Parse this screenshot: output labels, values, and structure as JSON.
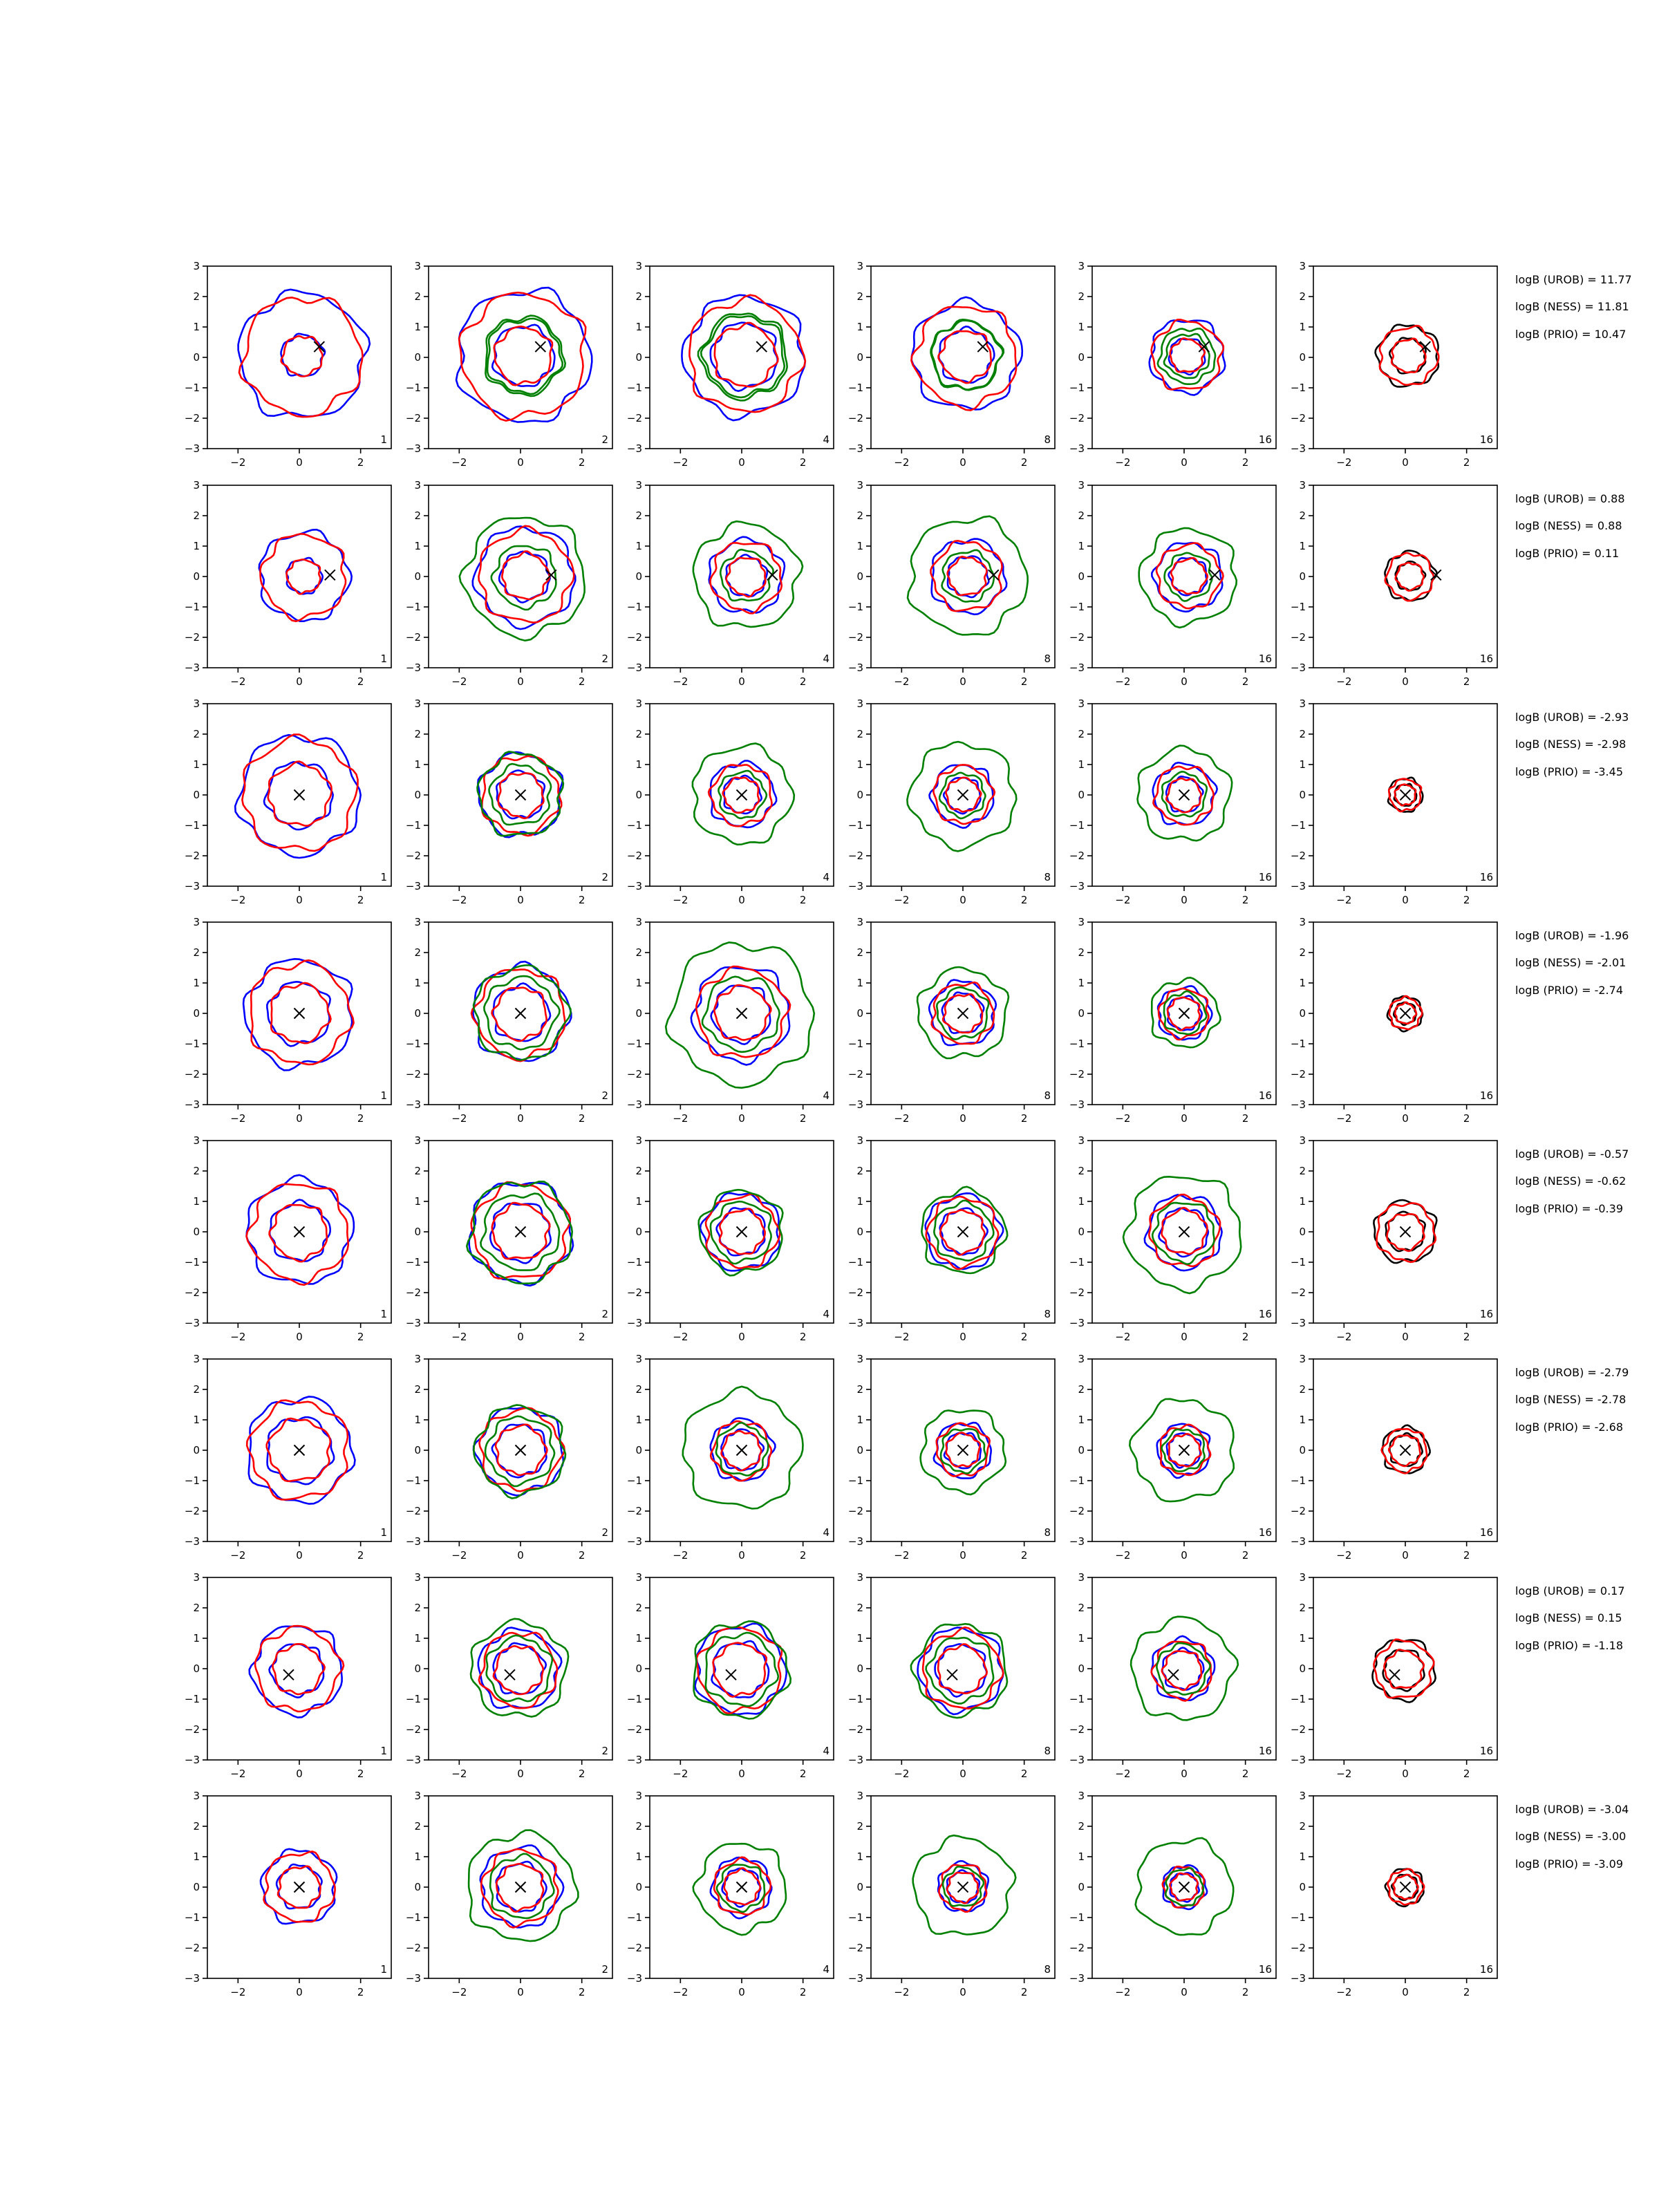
{
  "chart_data": {
    "type": "contour",
    "layout": {
      "rows": 8,
      "cols": 6
    },
    "axes": {
      "xlim": [
        -3,
        3
      ],
      "ylim": [
        -3,
        3
      ],
      "xticks": [
        -2,
        0,
        2
      ],
      "yticks": [
        -3,
        -2,
        -1,
        0,
        1,
        2,
        3
      ],
      "xtick_labels": [
        "−2",
        "0",
        "2"
      ],
      "ytick_labels": [
        "−3",
        "−2",
        "−1",
        "0",
        "1",
        "2",
        "3"
      ]
    },
    "colors": {
      "blue": "#0000ff",
      "red": "#ff0000",
      "green": "#008000",
      "black": "#000000"
    },
    "columns": [
      {
        "n": "1",
        "series_colors": [
          "blue",
          "red"
        ]
      },
      {
        "n": "2",
        "series_colors": [
          "blue",
          "red",
          "green"
        ]
      },
      {
        "n": "4",
        "series_colors": [
          "blue",
          "red",
          "green"
        ]
      },
      {
        "n": "8",
        "series_colors": [
          "blue",
          "red",
          "green"
        ]
      },
      {
        "n": "16",
        "series_colors": [
          "blue",
          "red",
          "green"
        ]
      },
      {
        "n": "16",
        "series_colors": [
          "black",
          "red"
        ]
      }
    ],
    "rows": [
      {
        "marker": [
          0.65,
          0.35
        ],
        "scale": 1.0,
        "radii": [
          [
            1.15,
            2.05
          ],
          [
            1.7,
            2.15
          ],
          [
            1.85,
            1.95
          ],
          [
            1.5,
            1.75
          ],
          [
            0.95,
            1.2
          ],
          [
            0.95,
            1.0
          ]
        ],
        "green_outer": [
          0,
          1.2,
          1.3,
          1.1,
          0.9,
          0
        ],
        "annotations": {
          "urob": "logB (UROB) = 11.77",
          "ness": "logB (NESS) = 11.81",
          "prio": "logB (PRIO) = 10.47"
        }
      },
      {
        "marker": [
          1.0,
          0.05
        ],
        "scale": 0.8,
        "radii": [
          [
            0.95,
            1.45
          ],
          [
            1.35,
            1.6
          ],
          [
            1.1,
            1.2
          ],
          [
            1.1,
            1.2
          ],
          [
            1.0,
            1.1
          ],
          [
            0.75,
            0.8
          ]
        ],
        "green_outer": [
          0,
          1.95,
          1.7,
          1.9,
          1.55,
          0
        ],
        "annotations": {
          "urob": "logB (UROB) = 0.88",
          "ness": "logB (NESS) = 0.88",
          "prio": "logB (PRIO) = 0.11"
        }
      },
      {
        "marker": [
          0,
          0
        ],
        "scale": 1.0,
        "radii": [
          [
            1.85,
            1.95
          ],
          [
            1.3,
            1.35
          ],
          [
            1.0,
            1.05
          ],
          [
            0.95,
            1.0
          ],
          [
            0.95,
            1.0
          ],
          [
            0.55,
            0.55
          ]
        ],
        "green_outer": [
          0,
          1.35,
          1.6,
          1.7,
          1.5,
          0
        ],
        "annotations": {
          "urob": "logB (UROB) = -2.93",
          "ness": "logB (NESS) = -2.98",
          "prio": "logB (PRIO) = -3.45"
        }
      },
      {
        "marker": [
          0,
          0
        ],
        "scale": 0.8,
        "radii": [
          [
            1.75,
            1.75
          ],
          [
            1.55,
            1.55
          ],
          [
            1.6,
            1.55
          ],
          [
            1.1,
            1.05
          ],
          [
            0.9,
            0.85
          ],
          [
            0.55,
            0.55
          ]
        ],
        "green_outer": [
          0,
          1.5,
          2.3,
          1.45,
          1.1,
          0
        ],
        "annotations": {
          "urob": "logB (UROB) = -1.96",
          "ness": "logB (NESS) = -2.01",
          "prio": "logB (PRIO) = -2.74"
        }
      },
      {
        "marker": [
          0,
          0
        ],
        "scale": 0.8,
        "radii": [
          [
            1.65,
            1.7
          ],
          [
            1.65,
            1.65
          ],
          [
            1.3,
            1.25
          ],
          [
            1.25,
            1.2
          ],
          [
            1.3,
            1.2
          ],
          [
            1.05,
            1.0
          ]
        ],
        "green_outer": [
          0,
          1.65,
          1.35,
          1.35,
          1.85,
          0
        ],
        "annotations": {
          "urob": "logB (UROB) = -0.57",
          "ness": "logB (NESS) = -0.62",
          "prio": "logB (PRIO) = -0.39"
        }
      },
      {
        "marker": [
          0,
          0
        ],
        "scale": 0.8,
        "radii": [
          [
            1.85,
            1.7
          ],
          [
            1.45,
            1.4
          ],
          [
            1.1,
            1.0
          ],
          [
            0.95,
            0.9
          ],
          [
            0.9,
            0.85
          ],
          [
            0.85,
            0.75
          ]
        ],
        "green_outer": [
          0,
          1.45,
          1.9,
          1.35,
          1.65,
          0
        ],
        "annotations": {
          "urob": "logB (UROB) = -2.79",
          "ness": "logB (NESS) = -2.78",
          "prio": "logB (PRIO) = -2.68"
        }
      },
      {
        "marker": [
          -0.35,
          -0.2
        ],
        "scale": 0.8,
        "radii": [
          [
            1.45,
            1.45
          ],
          [
            1.4,
            1.3
          ],
          [
            1.55,
            1.45
          ],
          [
            1.4,
            1.35
          ],
          [
            1.1,
            1.0
          ],
          [
            1.1,
            1.0
          ]
        ],
        "green_outer": [
          0,
          1.55,
          1.55,
          1.5,
          1.65,
          0
        ],
        "annotations": {
          "urob": "logB (UROB) = 0.17",
          "ness": "logB (NESS) = 0.15",
          "prio": "logB (PRIO) = -1.18"
        }
      },
      {
        "marker": [
          0,
          0
        ],
        "scale": 0.8,
        "radii": [
          [
            1.2,
            1.2
          ],
          [
            1.35,
            1.3
          ],
          [
            1.0,
            0.95
          ],
          [
            0.85,
            0.8
          ],
          [
            0.75,
            0.7
          ],
          [
            0.65,
            0.6
          ]
        ],
        "green_outer": [
          0,
          1.75,
          1.45,
          1.6,
          1.55,
          0
        ],
        "annotations": {
          "urob": "logB (UROB) = -3.04",
          "ness": "logB (NESS) = -3.00",
          "prio": "logB (PRIO) = -3.09"
        }
      }
    ]
  }
}
